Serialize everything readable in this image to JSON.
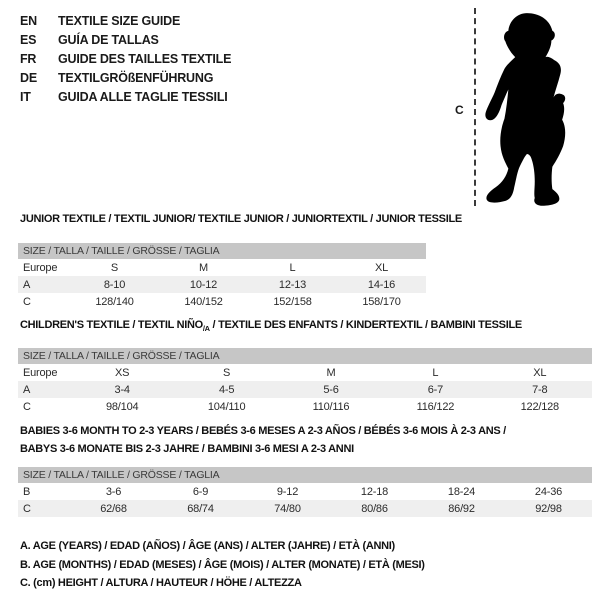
{
  "colors": {
    "background": "#ffffff",
    "size_bar_bg": "#c6c6c6",
    "alt_row_bg": "#efefef",
    "silhouette": "#000000",
    "text": "#1a1a1a"
  },
  "header": {
    "languages": [
      {
        "code": "EN",
        "text": "TEXTILE SIZE GUIDE"
      },
      {
        "code": "ES",
        "text": "GUÍA DE TALLAS"
      },
      {
        "code": "FR",
        "text": "GUIDE DES TAILLES TEXTILE"
      },
      {
        "code": "DE",
        "text": "TEXTILGRÖßENFÜHRUNG"
      },
      {
        "code": "IT",
        "text": "GUIDA ALLE TAGLIE TESSILI"
      }
    ]
  },
  "figure": {
    "marker_label": "C",
    "silhouette_name": "toddler-silhouette"
  },
  "size_bar_label": "SIZE / TALLA / TAILLE / GRÖSSE / TAGLIA",
  "sections": [
    {
      "title": "JUNIOR TEXTILE / TEXTIL JUNIOR/ TEXTILE JUNIOR / JUNIORTEXTIL / JUNIOR TESSILE",
      "rows": [
        [
          "Europe",
          "S",
          "M",
          "L",
          "XL"
        ],
        [
          "A",
          "8-10",
          "10-12",
          "12-13",
          "14-16"
        ],
        [
          "C",
          "128/140",
          "140/152",
          "152/158",
          "158/170"
        ]
      ]
    },
    {
      "title_pre": "CHILDREN'S TEXTILE / TEXTIL NIÑO",
      "title_sub": "/A",
      "title_post": " / TEXTILE DES ENFANTS / KINDERTEXTIL / BAMBINI TESSILE",
      "rows": [
        [
          "Europe",
          "XS",
          "S",
          "M",
          "L",
          "XL"
        ],
        [
          "A",
          "3-4",
          "4-5",
          "5-6",
          "6-7",
          "7-8"
        ],
        [
          "C",
          "98/104",
          "104/110",
          "110/116",
          "116/122",
          "122/128"
        ]
      ]
    },
    {
      "title_line1": "BABIES 3-6 MONTH TO 2-3 YEARS / BEBÉS 3-6 MESES A 2-3 AÑOS / BÉBÉS 3-6 MOIS À 2-3 ANS /",
      "title_line2": "BABYS 3-6 MONATE BIS 2-3 JAHRE / BAMBINI 3-6 MESI A 2-3 ANNI",
      "rows": [
        [
          "B",
          "3-6",
          "6-9",
          "9-12",
          "12-18",
          "18-24",
          "24-36"
        ],
        [
          "C",
          "62/68",
          "68/74",
          "74/80",
          "80/86",
          "86/92",
          "92/98"
        ]
      ]
    }
  ],
  "legend": [
    {
      "text": "A. AGE (YEARS) / EDAD (AÑOS) / ÂGE (ANS) / ALTER (JAHRE) / ETÀ (ANNI)"
    },
    {
      "text": "B. AGE (MONTHS) / EDAD (MESES) / ÂGE (MOIS) / ALTER (MONATE) / ETÀ (MESI)"
    },
    {
      "text": "C. (cm) HEIGHT / ALTURA / HAUTEUR / HÖHE / ALTEZZA"
    }
  ]
}
